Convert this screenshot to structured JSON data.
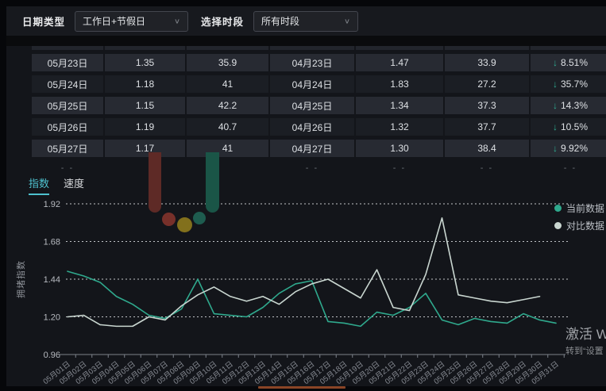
{
  "topbar": {
    "date_type_label": "日期类型",
    "date_type_value": "工作日+节假日",
    "period_label": "选择时段",
    "period_value": "所有时段",
    "chevron": "∨"
  },
  "table": {
    "down_arrow": "↓",
    "rows": [
      [
        "05月23日",
        "1.35",
        "35.9",
        "04月23日",
        "1.47",
        "33.9",
        "8.51%"
      ],
      [
        "05月24日",
        "1.18",
        "41",
        "04月24日",
        "1.83",
        "27.2",
        "35.7%"
      ],
      [
        "05月25日",
        "1.15",
        "42.2",
        "04月25日",
        "1.34",
        "37.3",
        "14.3%"
      ],
      [
        "05月26日",
        "1.19",
        "40.7",
        "04月26日",
        "1.32",
        "37.7",
        "10.5%"
      ],
      [
        "05月27日",
        "1.17",
        "41",
        "04月27日",
        "1.30",
        "38.4",
        "9.92%"
      ]
    ],
    "placeholder_cells": [
      "- -",
      "",
      "",
      "- -",
      "- -",
      "- -",
      "- -"
    ]
  },
  "tabs": [
    {
      "label": "指数",
      "active": true
    },
    {
      "label": "速度",
      "active": false
    }
  ],
  "chart_data": {
    "type": "line",
    "ylabel": "拥堵指数",
    "ylim": [
      0.96,
      1.92
    ],
    "yticks": [
      0.96,
      1.2,
      1.44,
      1.68,
      1.92
    ],
    "grid": "horizontal-dotted",
    "legend_position": "top-right",
    "categories": [
      "05月01日",
      "05月02日",
      "05月03日",
      "05月04日",
      "05月05日",
      "05月06日",
      "05月07日",
      "05月08日",
      "05月09日",
      "05月10日",
      "05月11日",
      "05月12日",
      "05月13日",
      "05月14日",
      "05月15日",
      "05月16日",
      "05月17日",
      "05月18日",
      "05月19日",
      "05月20日",
      "05月21日",
      "05月22日",
      "05月23日",
      "05月24日",
      "05月25日",
      "05月26日",
      "05月27日",
      "05月28日",
      "05月29日",
      "05月30日",
      "05月31日"
    ],
    "series": [
      {
        "name": "当前数据",
        "color": "#2fa98d",
        "values": [
          1.49,
          1.46,
          1.42,
          1.33,
          1.28,
          1.21,
          1.19,
          1.25,
          1.44,
          1.22,
          1.21,
          1.2,
          1.26,
          1.35,
          1.41,
          1.43,
          1.17,
          1.16,
          1.14,
          1.23,
          1.21,
          1.26,
          1.35,
          1.18,
          1.15,
          1.19,
          1.17,
          1.16,
          1.22,
          1.18,
          1.16
        ]
      },
      {
        "name": "对比数据",
        "color": "#c9d6d0",
        "values": [
          1.2,
          1.21,
          1.15,
          1.14,
          1.14,
          1.2,
          1.18,
          1.27,
          1.34,
          1.39,
          1.33,
          1.3,
          1.33,
          1.28,
          1.36,
          1.41,
          1.44,
          1.38,
          1.32,
          1.5,
          1.26,
          1.24,
          1.47,
          1.83,
          1.34,
          1.32,
          1.3,
          1.29,
          1.31,
          1.33
        ]
      }
    ]
  },
  "watermark": {
    "line1": "激活 W",
    "line2": "转到“设置"
  },
  "colors": {
    "accent_cyan": "#4ec1ce",
    "teal_line": "#2fa98d",
    "pale_line": "#c9d6d0",
    "down_arrow": "#2fae93",
    "row_light": "#272a32",
    "row_dark": "#1b1e24",
    "scroll_indicator": "#8a4526"
  }
}
